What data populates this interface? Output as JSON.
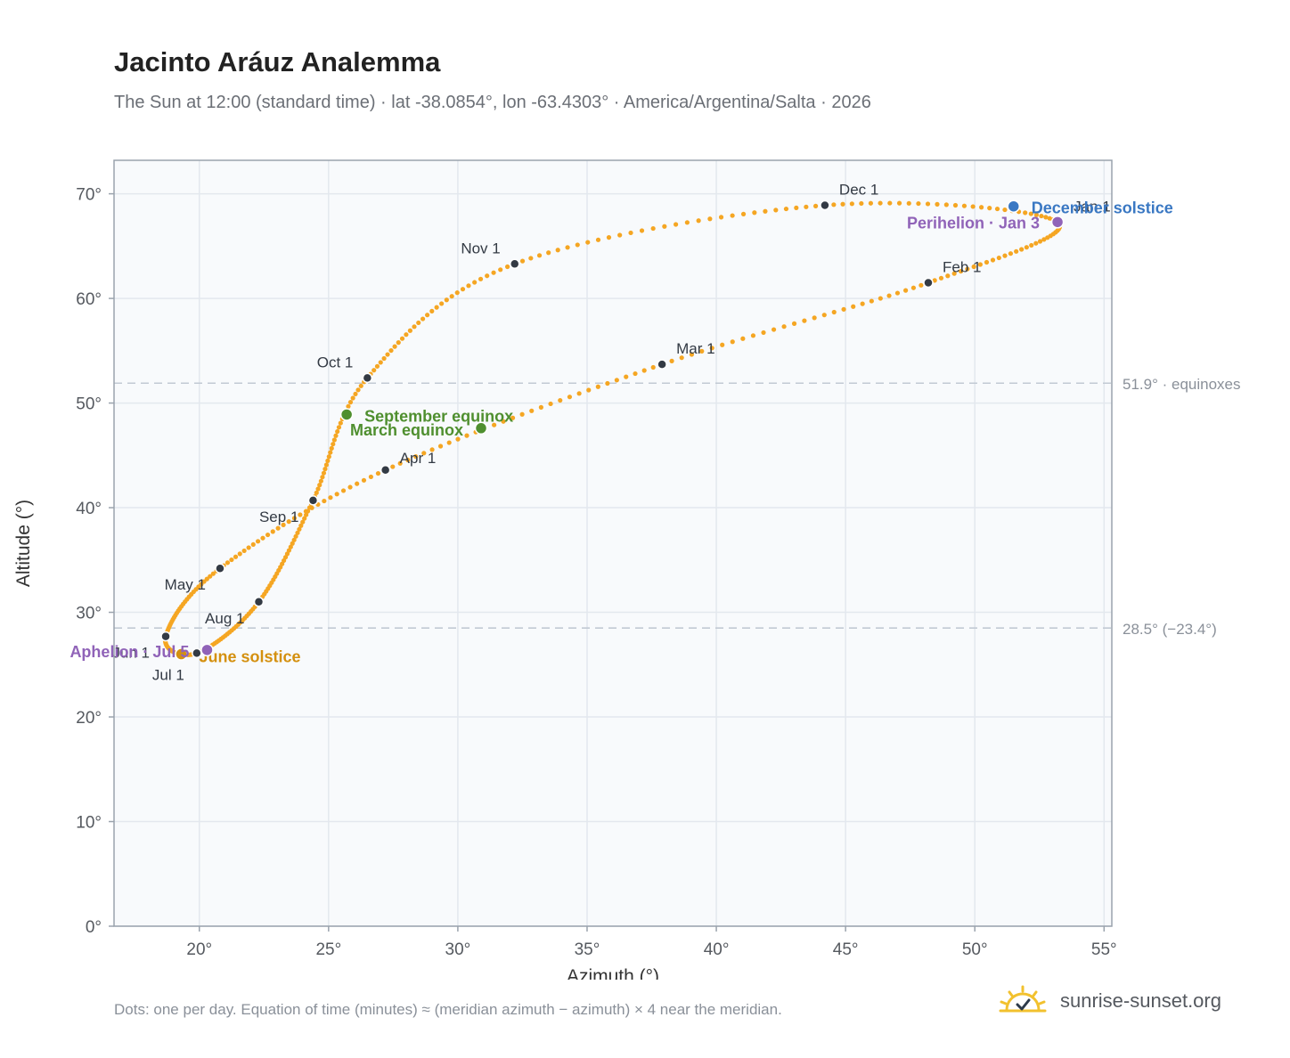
{
  "title": "Jacinto Aráuz Analemma",
  "subtitle": "The Sun at 12:00 (standard time) · lat -38.0854°, lon -63.4303° · America/Argentina/Salta · 2026",
  "footnote": "Dots: one per day. Equation of time (minutes) ≈ (meridian azimuth − azimuth) × 4 near the meridian.",
  "brand": {
    "name": "sunrise-sunset.org",
    "icon": "sun-check-logo-icon"
  },
  "colors": {
    "curve": "#f5a623",
    "month_dot": "#333a44",
    "equinox": "#4f8f2f",
    "june_solstice": "#d4900f",
    "december_solstice": "#3a78c3",
    "apsis": "#9063b8",
    "reference_line": "#c2cad4",
    "plot_bg": "#f8fafc",
    "grid": "#e3e8ee",
    "frame": "#9aa3ad"
  },
  "chart_data": {
    "type": "scatter",
    "title": "Jacinto Aráuz Analemma",
    "xlabel": "Azimuth (°)",
    "ylabel": "Altitude (°)",
    "xlim": [
      16.7,
      55.3
    ],
    "ylim": [
      0,
      73.2
    ],
    "x_ticks": [
      20,
      25,
      30,
      35,
      40,
      45,
      50,
      55
    ],
    "y_ticks": [
      0,
      10,
      20,
      30,
      40,
      50,
      60,
      70
    ],
    "tick_suffix": "°",
    "grid": true,
    "month_points": [
      {
        "label": "Jan 1",
        "x": 53.2,
        "y": 67.3
      },
      {
        "label": "Feb 1",
        "x": 48.2,
        "y": 61.5
      },
      {
        "label": "Mar 1",
        "x": 37.9,
        "y": 53.7
      },
      {
        "label": "Apr 1",
        "x": 27.2,
        "y": 43.6
      },
      {
        "label": "May 1",
        "x": 20.8,
        "y": 34.2
      },
      {
        "label": "Jun 1",
        "x": 18.7,
        "y": 27.7
      },
      {
        "label": "Jul 1",
        "x": 19.9,
        "y": 26.1
      },
      {
        "label": "Aug 1",
        "x": 22.3,
        "y": 31.0
      },
      {
        "label": "Sep 1",
        "x": 24.4,
        "y": 40.7
      },
      {
        "label": "Oct 1",
        "x": 26.5,
        "y": 52.4
      },
      {
        "label": "Nov 1",
        "x": 32.2,
        "y": 63.3
      },
      {
        "label": "Dec 1",
        "x": 44.2,
        "y": 68.9
      }
    ],
    "events": [
      {
        "label": "March equinox",
        "x": 30.9,
        "y": 47.6,
        "color": "#4f8f2f"
      },
      {
        "label": "September equinox",
        "x": 25.7,
        "y": 48.9,
        "color": "#4f8f2f"
      },
      {
        "label": "June solstice",
        "x": 19.3,
        "y": 26.0,
        "color": "#d4900f"
      },
      {
        "label": "December solstice",
        "x": 51.5,
        "y": 68.8,
        "color": "#3a78c3"
      },
      {
        "label": "Perihelion · Jan 3",
        "x": 53.2,
        "y": 67.3,
        "color": "#9063b8"
      },
      {
        "label": "Aphelion · Jul 5",
        "x": 20.3,
        "y": 26.4,
        "color": "#9063b8"
      }
    ],
    "reference_lines": [
      {
        "y": 51.9,
        "label": "51.9° · equinoxes"
      },
      {
        "y": 28.5,
        "label": "28.5° (−23.4°)"
      }
    ]
  }
}
